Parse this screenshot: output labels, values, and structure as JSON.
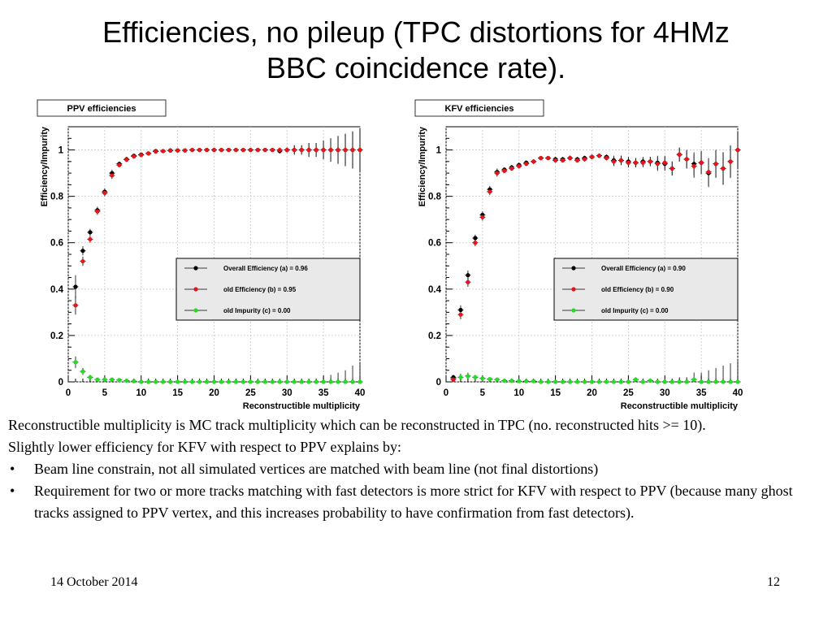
{
  "title": {
    "line1": "Efficiencies, no pileup (TPC distortions for 4HMz",
    "line2": "BBC coincidence rate)."
  },
  "chart_data": [
    {
      "type": "scatter",
      "title": "PPV efficiencies",
      "xlabel": "Reconstructible multiplicity",
      "ylabel": "Efficiency/Impurity",
      "xlim": [
        0,
        40
      ],
      "ylim": [
        0,
        1.1
      ],
      "xticks": [
        0,
        5,
        10,
        15,
        20,
        25,
        30,
        35,
        40
      ],
      "yticks": [
        0,
        0.2,
        0.4,
        0.6,
        0.8,
        1
      ],
      "grid": true,
      "legend_placement": "center-right",
      "x": [
        1,
        2,
        3,
        4,
        5,
        6,
        7,
        8,
        9,
        10,
        11,
        12,
        13,
        14,
        15,
        16,
        17,
        18,
        19,
        20,
        21,
        22,
        23,
        24,
        25,
        26,
        27,
        28,
        29,
        30,
        31,
        32,
        33,
        34,
        35,
        36,
        37,
        38,
        39,
        40
      ],
      "series": [
        {
          "name": "Overall Efficiency (a) = 0.96",
          "color": "#000000",
          "values": [
            0.41,
            0.565,
            0.645,
            0.74,
            0.82,
            0.9,
            0.94,
            0.96,
            0.975,
            0.98,
            0.985,
            0.995,
            0.995,
            0.998,
            0.998,
            0.998,
            1,
            1,
            1,
            1,
            1,
            1,
            1,
            1,
            1,
            1,
            1,
            1,
            0.995,
            1,
            1,
            1,
            1,
            1,
            1,
            1,
            1,
            1,
            1,
            1
          ],
          "errors": [
            0.05,
            0.02,
            0.015,
            0.015,
            0.015,
            0.015,
            0.01,
            0.01,
            0.005,
            0.005,
            0.005,
            0.005,
            0.003,
            0.003,
            0.003,
            0.003,
            0,
            0,
            0,
            0,
            0,
            0,
            0,
            0,
            0,
            0,
            0,
            0,
            0.01,
            0.01,
            0.02,
            0.02,
            0.03,
            0.03,
            0.04,
            0.05,
            0.06,
            0.07,
            0.08,
            0.09
          ]
        },
        {
          "name": "old Efficiency (b) = 0.95",
          "color": "#e8141a",
          "values": [
            0.33,
            0.52,
            0.615,
            0.735,
            0.815,
            0.89,
            0.935,
            0.958,
            0.972,
            0.978,
            0.985,
            0.993,
            0.995,
            0.997,
            0.998,
            0.998,
            1,
            1,
            1,
            1,
            1,
            1,
            1,
            1,
            1,
            1,
            1,
            1,
            1,
            1,
            1,
            1,
            1,
            1,
            1,
            1,
            1,
            1,
            1,
            1
          ],
          "errors": [
            0.04,
            0.02,
            0.015,
            0.015,
            0.015,
            0.015,
            0.01,
            0.01,
            0.005,
            0.005,
            0.005,
            0.005,
            0.003,
            0.003,
            0.003,
            0.003,
            0,
            0,
            0,
            0,
            0,
            0,
            0,
            0,
            0,
            0,
            0,
            0,
            0.01,
            0.01,
            0.02,
            0.02,
            0.03,
            0.03,
            0.04,
            0.05,
            0.06,
            0.07,
            0.08,
            0.09
          ]
        },
        {
          "name": "old Impurity (c) = 0.00",
          "color": "#22dd22",
          "values": [
            0.085,
            0.045,
            0.02,
            0.01,
            0.01,
            0.01,
            0.008,
            0.005,
            0.003,
            0,
            0,
            0,
            0,
            0,
            0,
            0,
            0,
            0,
            0,
            0,
            0,
            0,
            0,
            0,
            0,
            0,
            0,
            0,
            0,
            0,
            0,
            0,
            0,
            0,
            0,
            0,
            0,
            0,
            0,
            0
          ],
          "errors": [
            0.025,
            0.015,
            0.01,
            0.005,
            0.005,
            0.005,
            0.005,
            0.003,
            0.003,
            0,
            0,
            0,
            0,
            0,
            0,
            0,
            0,
            0,
            0,
            0,
            0,
            0,
            0,
            0,
            0,
            0,
            0,
            0,
            0,
            0,
            0,
            0,
            0,
            0,
            0.02,
            0.03,
            0.04,
            0.05,
            0.07,
            0.08
          ]
        }
      ]
    },
    {
      "type": "scatter",
      "title": "KFV efficiencies",
      "xlabel": "Reconstructible multiplicity",
      "ylabel": "Efficiency/Impurity",
      "xlim": [
        0,
        40
      ],
      "ylim": [
        0,
        1.1
      ],
      "xticks": [
        0,
        5,
        10,
        15,
        20,
        25,
        30,
        35,
        40
      ],
      "yticks": [
        0,
        0.2,
        0.4,
        0.6,
        0.8,
        1
      ],
      "grid": true,
      "legend_placement": "center-right",
      "x": [
        1,
        2,
        3,
        4,
        5,
        6,
        7,
        8,
        9,
        10,
        11,
        12,
        13,
        14,
        15,
        16,
        17,
        18,
        19,
        20,
        21,
        22,
        23,
        24,
        25,
        26,
        27,
        28,
        29,
        30,
        31,
        32,
        33,
        34,
        35,
        36,
        37,
        38,
        39,
        40
      ],
      "series": [
        {
          "name": "Overall Efficiency (a) = 0.90",
          "color": "#000000",
          "values": [
            0.02,
            0.31,
            0.46,
            0.62,
            0.72,
            0.83,
            0.905,
            0.915,
            0.925,
            0.935,
            0.945,
            0.95,
            0.965,
            0.965,
            0.96,
            0.96,
            0.965,
            0.96,
            0.965,
            0.97,
            0.975,
            0.97,
            0.955,
            0.955,
            0.95,
            0.945,
            0.95,
            0.95,
            0.945,
            0.94,
            0.92,
            0.98,
            0.96,
            0.94,
            0.945,
            0.9,
            0.94,
            0.92,
            0.95,
            1
          ],
          "errors": [
            0.01,
            0.02,
            0.02,
            0.015,
            0.015,
            0.015,
            0.015,
            0.01,
            0.01,
            0.01,
            0.01,
            0.01,
            0.005,
            0.005,
            0.01,
            0.01,
            0.01,
            0.01,
            0.01,
            0.01,
            0.01,
            0.01,
            0.02,
            0.02,
            0.02,
            0.02,
            0.02,
            0.02,
            0.03,
            0.03,
            0.03,
            0.03,
            0.04,
            0.05,
            0.05,
            0.06,
            0.06,
            0.07,
            0.07,
            0.08
          ]
        },
        {
          "name": "old Efficiency (b) = 0.90",
          "color": "#e8141a",
          "values": [
            0.01,
            0.29,
            0.43,
            0.6,
            0.71,
            0.82,
            0.9,
            0.91,
            0.92,
            0.93,
            0.94,
            0.95,
            0.965,
            0.965,
            0.955,
            0.955,
            0.965,
            0.955,
            0.96,
            0.97,
            0.975,
            0.965,
            0.95,
            0.955,
            0.945,
            0.945,
            0.945,
            0.95,
            0.94,
            0.945,
            0.92,
            0.98,
            0.96,
            0.93,
            0.945,
            0.905,
            0.94,
            0.92,
            0.95,
            1
          ],
          "errors": [
            0.01,
            0.02,
            0.02,
            0.015,
            0.015,
            0.015,
            0.015,
            0.01,
            0.01,
            0.01,
            0.01,
            0.01,
            0.005,
            0.005,
            0.01,
            0.01,
            0.01,
            0.01,
            0.01,
            0.01,
            0.01,
            0.01,
            0.02,
            0.02,
            0.02,
            0.02,
            0.02,
            0.02,
            0.03,
            0.03,
            0.03,
            0.03,
            0.04,
            0.05,
            0.05,
            0.06,
            0.06,
            0.07,
            0.07,
            0.08
          ]
        },
        {
          "name": "old Impurity (c) = 0.00",
          "color": "#22dd22",
          "values": [
            0.015,
            0.02,
            0.025,
            0.02,
            0.015,
            0.012,
            0.01,
            0.005,
            0.005,
            0.003,
            0.003,
            0.003,
            0,
            0,
            0,
            0,
            0,
            0,
            0,
            0,
            0,
            0,
            0,
            0,
            0,
            0.01,
            0,
            0.005,
            0,
            0,
            0,
            0,
            0,
            0.01,
            0,
            0,
            0,
            0,
            0,
            0
          ],
          "errors": [
            0.015,
            0.015,
            0.015,
            0.01,
            0.01,
            0.005,
            0.005,
            0.003,
            0.003,
            0.003,
            0.003,
            0.003,
            0,
            0,
            0,
            0,
            0,
            0,
            0,
            0,
            0,
            0,
            0,
            0,
            0,
            0.01,
            0,
            0.01,
            0,
            0.01,
            0.01,
            0.02,
            0.02,
            0.03,
            0.04,
            0.05,
            0.06,
            0.07,
            0.08,
            0.09
          ]
        }
      ]
    }
  ],
  "body": {
    "para1": "Reconstructible  multiplicity is MC track multiplicity which can be reconstructed in TPC (no. reconstructed hits >= 10).",
    "para2": "Slightly lower efficiency for KFV with respect to PPV explains by:",
    "bullet_symbol": "•",
    "bullets": [
      "Beam line constrain, not all simulated vertices are matched with beam line (not final distortions)",
      "Requirement for two or more tracks matching with fast detectors is more strict for KFV with respect to PPV (because many ghost tracks assigned to PPV vertex, and this increases probability to have confirmation from fast detectors)."
    ]
  },
  "footer": {
    "date": "14 October 2014",
    "page": "12"
  }
}
